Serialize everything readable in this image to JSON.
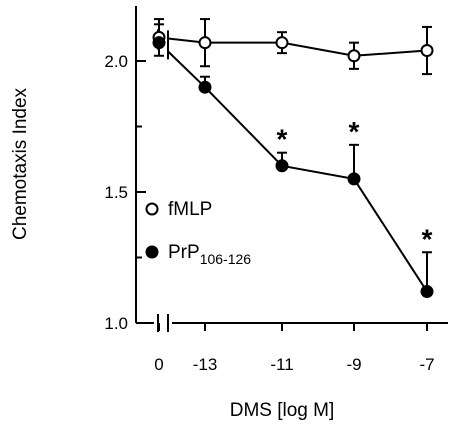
{
  "chart_data": {
    "type": "line",
    "title": "",
    "xlabel": "DMS [log M]",
    "ylabel": "Chemotaxis Index",
    "x_categories": [
      "0",
      "-13",
      "-11",
      "-9",
      "-7"
    ],
    "x_axis_break": "between 0 and -13",
    "y_ticks": [
      "1.0",
      "1.5",
      "2.0"
    ],
    "ylim": [
      1.0,
      2.2
    ],
    "grid": false,
    "legend_position": "left, lower-middle",
    "series": [
      {
        "name": "fMLP",
        "marker": "open-circle",
        "values": [
          2.09,
          2.07,
          2.07,
          2.02,
          2.04
        ],
        "error": [
          0.07,
          0.09,
          0.04,
          0.05,
          0.09
        ]
      },
      {
        "name": "PrP106-126",
        "name_base": "PrP",
        "name_subscript": "106-126",
        "marker": "filled-circle",
        "values": [
          2.07,
          1.9,
          1.6,
          1.55,
          1.12
        ],
        "error": [
          0.07,
          0.04,
          0.05,
          0.13,
          0.15
        ]
      }
    ],
    "annotations": [
      {
        "text": "*",
        "category": "-11"
      },
      {
        "text": "*",
        "category": "-9"
      },
      {
        "text": "*",
        "category": "-7"
      }
    ]
  }
}
